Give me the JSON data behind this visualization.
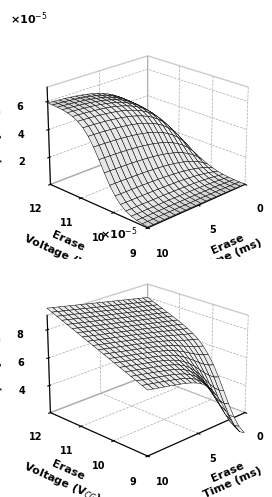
{
  "top": {
    "zlabel": "Read-out\nCurrent (A",
    "xlabel": "Erase\nTime (ms)",
    "ylabel": "Erase\nVoltage (V$_{CG}$)",
    "scale_label": "×10$^{-5}$",
    "t_range": [
      0,
      10
    ],
    "v_range": [
      9,
      12
    ],
    "zlim": [
      0,
      7
    ],
    "zticks": [
      2,
      4,
      6
    ],
    "xticks": [
      0,
      5,
      10
    ],
    "yticks": [
      9,
      10,
      11,
      12
    ]
  },
  "bottom": {
    "zlabel": "Read-out\nCurrent (A)",
    "xlabel": "Erase\nTime (ms)",
    "ylabel": "Erase\nVoltage (V$_{CG}$)",
    "scale_label": "×10$^{-5}$",
    "t_range": [
      0,
      10
    ],
    "v_range": [
      9,
      12
    ],
    "zlim": [
      2,
      9
    ],
    "zticks": [
      4,
      6,
      8
    ],
    "xticks": [
      0,
      5,
      10
    ],
    "yticks": [
      9,
      10,
      11,
      12
    ]
  },
  "elev": 22,
  "azim": -135,
  "n_grid": 20
}
